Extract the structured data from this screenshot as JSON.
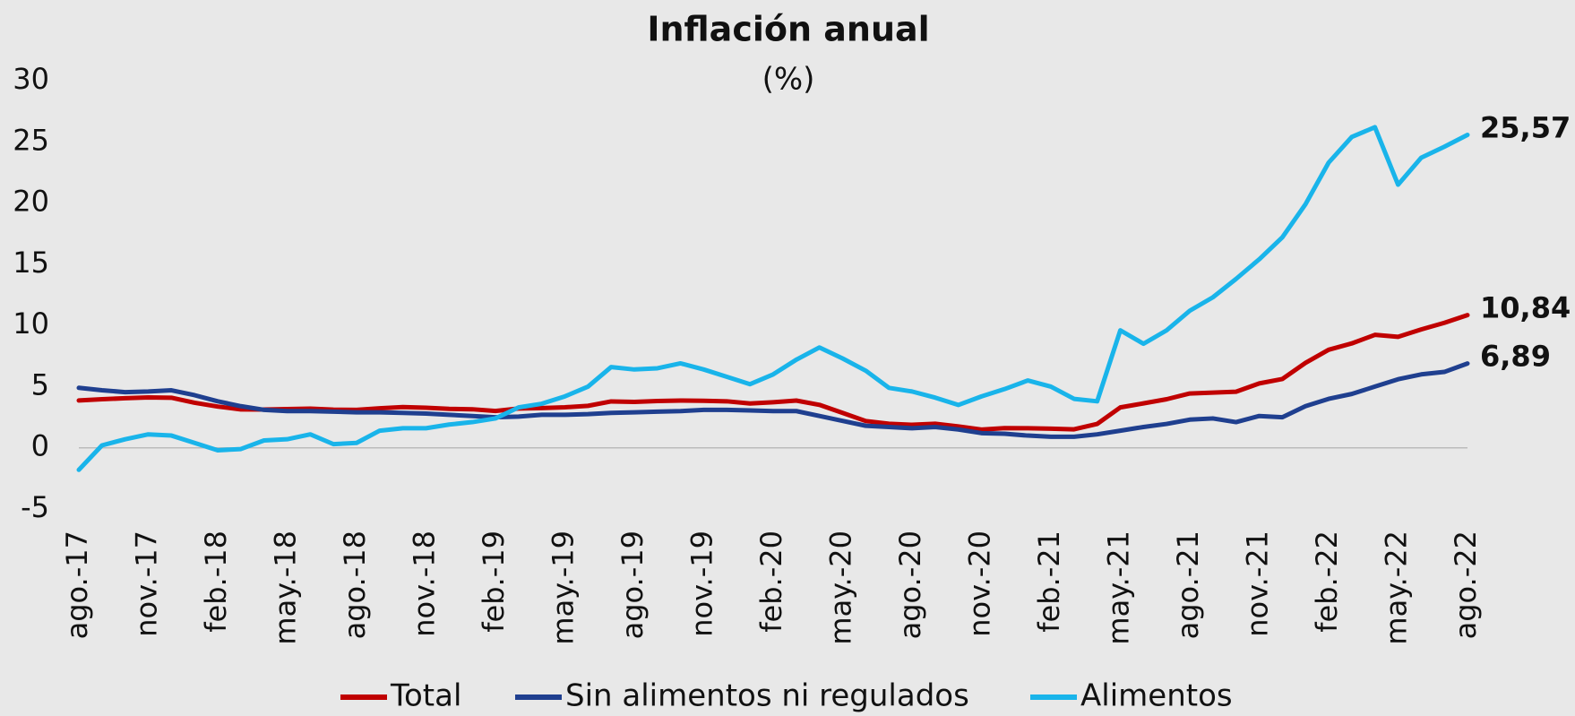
{
  "chart_data": {
    "type": "line",
    "title": "Inflación anual",
    "subtitle": "(%)",
    "categories": [
      "ago.-17",
      null,
      null,
      "nov.-17",
      null,
      null,
      "feb.-18",
      null,
      null,
      "may.-18",
      null,
      null,
      "ago.-18",
      null,
      null,
      "nov.-18",
      null,
      null,
      "feb.-19",
      null,
      null,
      "may.-19",
      null,
      null,
      "ago.-19",
      null,
      null,
      "nov.-19",
      null,
      null,
      "feb.-20",
      null,
      null,
      "may.-20",
      null,
      null,
      "ago.-20",
      null,
      null,
      "nov.-20",
      null,
      null,
      "feb.-21",
      null,
      null,
      "may.-21",
      null,
      null,
      "ago.-21",
      null,
      null,
      "nov.-21",
      null,
      null,
      "feb.-22",
      null,
      null,
      "may.-22",
      null,
      null,
      "ago.-22"
    ],
    "series": [
      {
        "name": "Total",
        "color": "#c00000",
        "values": [
          3.87,
          3.97,
          4.05,
          4.12,
          4.09,
          3.68,
          3.37,
          3.14,
          3.13,
          3.16,
          3.2,
          3.12,
          3.1,
          3.23,
          3.33,
          3.27,
          3.18,
          3.15,
          3.01,
          3.21,
          3.25,
          3.31,
          3.43,
          3.79,
          3.75,
          3.82,
          3.86,
          3.84,
          3.8,
          3.62,
          3.72,
          3.86,
          3.51,
          2.85,
          2.19,
          1.97,
          1.88,
          1.97,
          1.75,
          1.49,
          1.61,
          1.6,
          1.56,
          1.51,
          1.95,
          3.3,
          3.63,
          3.97,
          4.44,
          4.51,
          4.58,
          5.26,
          5.62,
          6.94,
          8.01,
          8.53,
          9.23,
          9.07,
          9.67,
          10.21,
          10.84
        ],
        "value_labels": [
          null,
          null,
          null,
          null,
          null,
          null,
          null,
          null,
          null,
          null,
          null,
          null,
          null,
          null,
          null,
          null,
          null,
          null,
          null,
          null,
          null,
          null,
          null,
          null,
          null,
          null,
          null,
          null,
          null,
          null,
          null,
          null,
          null,
          null,
          null,
          null,
          null,
          null,
          null,
          null,
          null,
          null,
          null,
          null,
          null,
          null,
          null,
          null,
          null,
          null,
          null,
          null,
          null,
          null,
          null,
          null,
          null,
          null,
          null,
          null,
          "10,84"
        ]
      },
      {
        "name": "Sin alimentos ni regulados",
        "color": "#1f3f8f",
        "values": [
          4.9,
          4.7,
          4.55,
          4.6,
          4.7,
          4.3,
          3.8,
          3.4,
          3.1,
          3.0,
          3.0,
          2.95,
          2.9,
          2.9,
          2.85,
          2.8,
          2.7,
          2.6,
          2.5,
          2.55,
          2.7,
          2.7,
          2.75,
          2.85,
          2.9,
          2.95,
          3.0,
          3.1,
          3.1,
          3.05,
          3.0,
          3.0,
          2.6,
          2.2,
          1.8,
          1.7,
          1.6,
          1.7,
          1.5,
          1.2,
          1.15,
          1.0,
          0.9,
          0.9,
          1.1,
          1.4,
          1.7,
          1.95,
          2.3,
          2.4,
          2.1,
          2.6,
          2.5,
          3.4,
          4.0,
          4.4,
          5.0,
          5.6,
          6.0,
          6.2,
          6.89
        ],
        "value_labels": [
          null,
          null,
          null,
          null,
          null,
          null,
          null,
          null,
          null,
          null,
          null,
          null,
          null,
          null,
          null,
          null,
          null,
          null,
          null,
          null,
          null,
          null,
          null,
          null,
          null,
          null,
          null,
          null,
          null,
          null,
          null,
          null,
          null,
          null,
          null,
          null,
          null,
          null,
          null,
          null,
          null,
          null,
          null,
          null,
          null,
          null,
          null,
          null,
          null,
          null,
          null,
          null,
          null,
          null,
          null,
          null,
          null,
          null,
          null,
          null,
          "6,89"
        ]
      },
      {
        "name": "Alimentos",
        "color": "#19b4ea",
        "values": [
          -1.8,
          0.2,
          0.7,
          1.1,
          1.0,
          0.4,
          -0.2,
          -0.1,
          0.6,
          0.7,
          1.1,
          0.3,
          0.4,
          1.4,
          1.6,
          1.6,
          1.9,
          2.1,
          2.4,
          3.3,
          3.6,
          4.2,
          5.0,
          6.6,
          6.4,
          6.5,
          6.9,
          6.4,
          5.8,
          5.2,
          6.0,
          7.2,
          8.2,
          7.3,
          6.3,
          4.9,
          4.6,
          4.1,
          3.5,
          4.2,
          4.8,
          5.5,
          5.0,
          4.0,
          3.8,
          9.6,
          8.5,
          9.6,
          11.2,
          12.3,
          13.8,
          15.4,
          17.2,
          19.9,
          23.3,
          25.4,
          26.2,
          21.5,
          23.7,
          24.6,
          25.57
        ],
        "value_labels": [
          null,
          null,
          null,
          null,
          null,
          null,
          null,
          null,
          null,
          null,
          null,
          null,
          null,
          null,
          null,
          null,
          null,
          null,
          null,
          null,
          null,
          null,
          null,
          null,
          null,
          null,
          null,
          null,
          null,
          null,
          null,
          null,
          null,
          null,
          null,
          null,
          null,
          null,
          null,
          null,
          null,
          null,
          null,
          null,
          null,
          null,
          null,
          null,
          null,
          null,
          null,
          null,
          null,
          null,
          null,
          null,
          null,
          null,
          null,
          null,
          "25,57"
        ]
      }
    ],
    "ylim": [
      -5,
      30
    ],
    "yticks": [
      -5,
      0,
      5,
      10,
      15,
      20,
      25,
      30
    ]
  }
}
